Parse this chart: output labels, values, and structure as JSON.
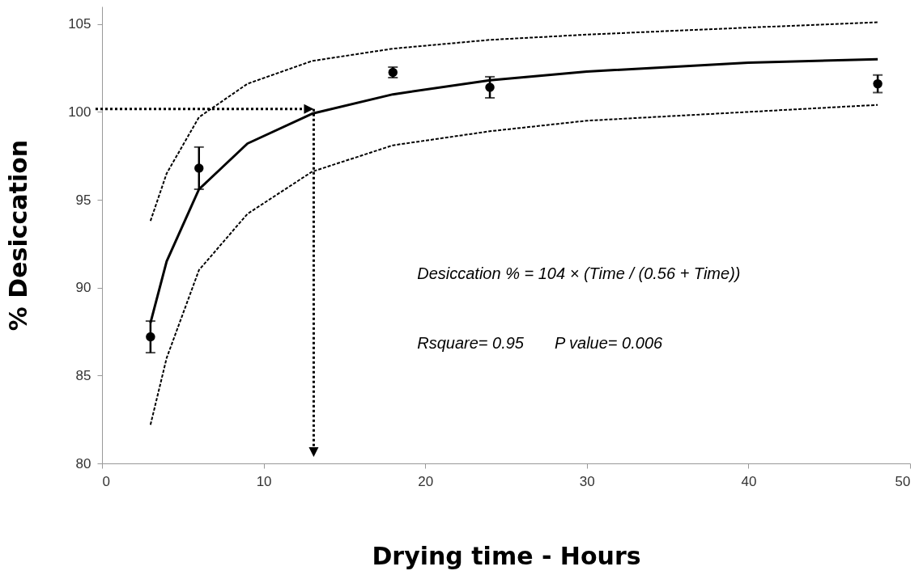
{
  "chart_data": {
    "type": "scatter",
    "xlabel": "Drying time - Hours",
    "ylabel": "% Desiccation",
    "xlim": [
      0,
      50
    ],
    "xticks": [
      0,
      10,
      20,
      30,
      40,
      50
    ],
    "ylim": [
      80,
      106
    ],
    "yticks": [
      80,
      85,
      90,
      95,
      100,
      105
    ],
    "grid": false,
    "series": [
      {
        "color": "#000000",
        "marker": "circle",
        "x": [
          3,
          6,
          18,
          24,
          48
        ],
        "values": [
          87.2,
          96.8,
          102.25,
          101.4,
          101.6
        ],
        "errors": [
          0.9,
          1.2,
          0.3,
          0.6,
          0.5
        ]
      },
      {
        "type": "line",
        "color": "#000000",
        "line_style": "solid",
        "x": [
          3,
          4,
          6,
          9,
          13,
          18,
          24,
          30,
          40,
          48
        ],
        "values": [
          88,
          91.5,
          95.6,
          98.2,
          99.9,
          101.0,
          101.8,
          102.3,
          102.8,
          103.0
        ]
      },
      {
        "type": "line",
        "color": "#000000",
        "line_style": "dashed",
        "x": [
          3,
          4,
          6,
          9,
          13,
          18,
          24,
          30,
          40,
          48
        ],
        "values": [
          93.8,
          96.5,
          99.7,
          101.6,
          102.9,
          103.6,
          104.1,
          104.4,
          104.8,
          105.1
        ]
      },
      {
        "type": "line",
        "color": "#000000",
        "line_style": "dashed",
        "x": [
          3,
          4,
          6,
          9,
          13,
          18,
          24,
          30,
          40,
          48
        ],
        "values": [
          82.2,
          86,
          91,
          94.2,
          96.6,
          98.1,
          98.9,
          99.5,
          100.0,
          100.4
        ]
      }
    ],
    "annotations": [
      "Desiccation % = 104 × (Time / (0.56 + Time))",
      "Rsquare= 0.95",
      "P value= 0.006"
    ]
  }
}
